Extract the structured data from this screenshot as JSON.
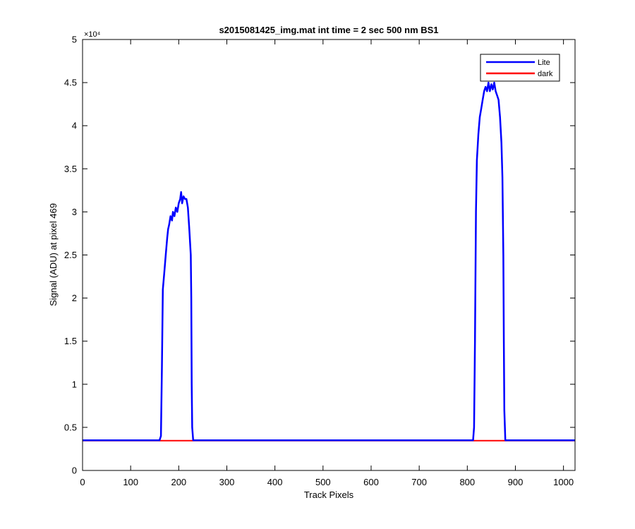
{
  "chart_data": {
    "type": "line",
    "title": "s2015081425_img.mat int time = 2 sec  500 nm BS1",
    "xlabel": "Track Pixels",
    "ylabel": "Signal (ADU) at pixel 469",
    "y_exponent_label": "×10⁴",
    "xlim": [
      0,
      1024
    ],
    "ylim": [
      0,
      50000
    ],
    "xticks": [
      0,
      100,
      200,
      300,
      400,
      500,
      600,
      700,
      800,
      900,
      1000
    ],
    "yticks": [
      0,
      5000,
      10000,
      15000,
      20000,
      25000,
      30000,
      35000,
      40000,
      45000,
      50000
    ],
    "xtick_labels": [
      "0",
      "100",
      "200",
      "300",
      "400",
      "500",
      "600",
      "700",
      "800",
      "900",
      "1000"
    ],
    "ytick_labels": [
      "0",
      "0.5",
      "1",
      "1.5",
      "2",
      "2.5",
      "3",
      "3.5",
      "4",
      "4.5",
      "5"
    ],
    "grid": false,
    "legend_position": "top-right",
    "series": [
      {
        "name": "Lite",
        "color": "#0000ff",
        "points": [
          [
            0,
            3500
          ],
          [
            160,
            3500
          ],
          [
            163,
            4000
          ],
          [
            165,
            12000
          ],
          [
            167,
            21000
          ],
          [
            170,
            23000
          ],
          [
            173,
            25000
          ],
          [
            176,
            27000
          ],
          [
            178,
            28000
          ],
          [
            180,
            28500
          ],
          [
            183,
            29500
          ],
          [
            186,
            29000
          ],
          [
            188,
            30000
          ],
          [
            191,
            29500
          ],
          [
            194,
            30500
          ],
          [
            197,
            30000
          ],
          [
            200,
            31000
          ],
          [
            203,
            31500
          ],
          [
            205,
            32300
          ],
          [
            207,
            31000
          ],
          [
            210,
            31800
          ],
          [
            213,
            31500
          ],
          [
            216,
            31500
          ],
          [
            219,
            30500
          ],
          [
            222,
            28000
          ],
          [
            225,
            25000
          ],
          [
            226,
            20000
          ],
          [
            227,
            10000
          ],
          [
            228,
            5000
          ],
          [
            230,
            3500
          ],
          [
            812,
            3500
          ],
          [
            814,
            5000
          ],
          [
            816,
            15000
          ],
          [
            818,
            30000
          ],
          [
            820,
            36000
          ],
          [
            823,
            39000
          ],
          [
            826,
            41000
          ],
          [
            829,
            42000
          ],
          [
            832,
            43000
          ],
          [
            835,
            44000
          ],
          [
            838,
            44500
          ],
          [
            841,
            44000
          ],
          [
            844,
            45000
          ],
          [
            847,
            44000
          ],
          [
            850,
            44800
          ],
          [
            853,
            44200
          ],
          [
            856,
            45000
          ],
          [
            859,
            44000
          ],
          [
            862,
            43500
          ],
          [
            865,
            43000
          ],
          [
            868,
            41000
          ],
          [
            871,
            38000
          ],
          [
            873,
            34000
          ],
          [
            875,
            25000
          ],
          [
            876,
            15000
          ],
          [
            877,
            7000
          ],
          [
            879,
            3500
          ],
          [
            1024,
            3500
          ]
        ]
      },
      {
        "name": "dark",
        "color": "#ff0000",
        "points": [
          [
            0,
            3450
          ],
          [
            1024,
            3450
          ]
        ]
      }
    ]
  }
}
